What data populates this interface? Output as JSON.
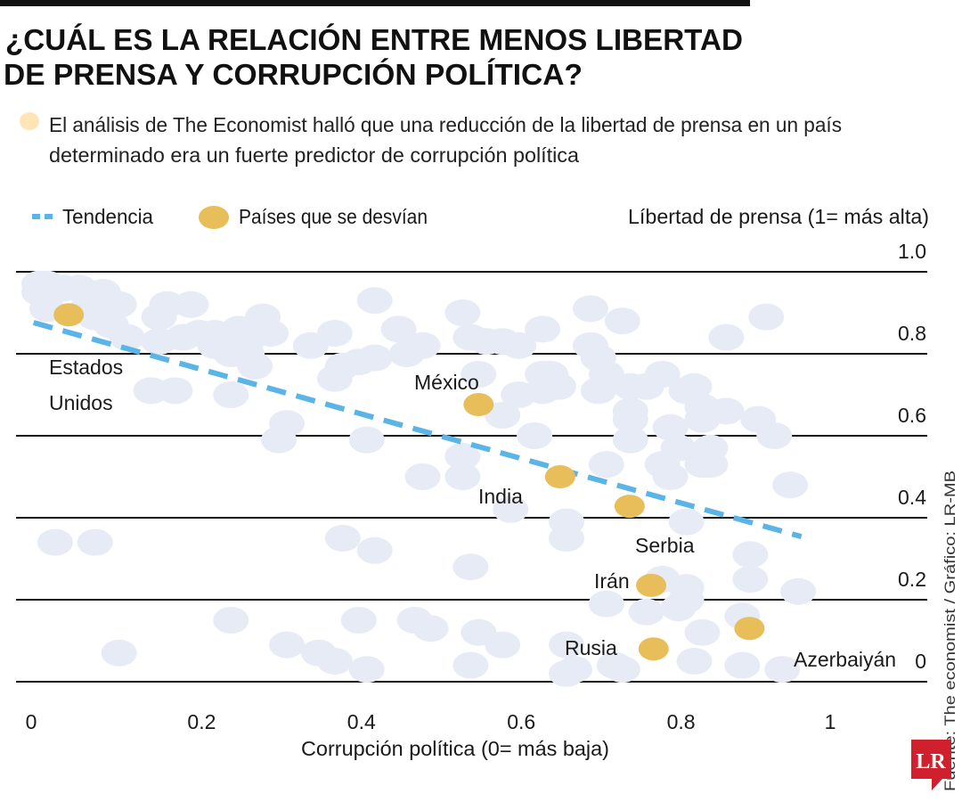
{
  "header": {
    "title_line1": "¿CUÁL ES LA RELACIÓN ENTRE MENOS LIBERTAD",
    "title_line2": "DE PRENSA Y CORRUPCIÓN POLÍTICA?",
    "subtitle_line1": "El análisis de The Economist halló que  una reducción de la libertad de prensa en un país",
    "subtitle_line2": "determinado era un fuerte predictor de corrupción política"
  },
  "colors": {
    "trend": "#5ab4e5",
    "highlight": "#e8be5a",
    "background_points": "#e6ebf6",
    "bullet": "#fde5b8",
    "logo": "#d0202e"
  },
  "source": "Fuente: The economist / Gráfico: LR-MB",
  "logo_text": "LR",
  "chart_data": {
    "type": "scatter",
    "title": "¿CUÁL ES LA RELACIÓN ENTRE MENOS LIBERTAD DE PRENSA Y CORRUPCIÓN POLÍTICA?",
    "xlabel": "Corrupción política (0= más baja)",
    "ylabel": "Líbertad de prensa (1= más alta)",
    "xlim": [
      0,
      1
    ],
    "ylim": [
      0,
      1
    ],
    "x_ticks": [
      "0",
      "0.2",
      "0.4",
      "0.6",
      "0.8",
      "1"
    ],
    "x_tick_values": [
      0,
      0.2,
      0.4,
      0.6,
      0.8,
      1
    ],
    "y_ticks": [
      "1.0",
      "0.8",
      "0.6",
      "0.4",
      "0.2",
      "0"
    ],
    "y_tick_values": [
      1,
      0.8,
      0.6,
      0.4,
      0.2,
      0
    ],
    "grid": true,
    "legend": {
      "placement": "top-left",
      "trend_label": "Tendencia",
      "highlight_label": "Países que se desvían"
    },
    "trend": {
      "x": [
        0.003,
        0.964
      ],
      "y": [
        0.876,
        0.354
      ]
    },
    "highlighted": [
      {
        "name": "Estados Unidos",
        "label_lines": [
          "Estados",
          "Unidos"
        ],
        "x": 0.047,
        "y": 0.895
      },
      {
        "name": "México",
        "label_lines": [
          "México"
        ],
        "x": 0.56,
        "y": 0.676
      },
      {
        "name": "India",
        "label_lines": [
          "India"
        ],
        "x": 0.662,
        "y": 0.5
      },
      {
        "name": "Serbia",
        "label_lines": [
          "Serbia"
        ],
        "x": 0.749,
        "y": 0.428
      },
      {
        "name": "Irán",
        "label_lines": [
          "Irán"
        ],
        "x": 0.776,
        "y": 0.235
      },
      {
        "name": "Rusia",
        "label_lines": [
          "Rusia"
        ],
        "x": 0.779,
        "y": 0.08
      },
      {
        "name": "Azerbaiyán",
        "label_lines": [
          "Azerbaiyán"
        ],
        "x": 0.899,
        "y": 0.13
      }
    ],
    "points": [
      [
        0.01,
        0.97
      ],
      [
        0.02,
        0.97
      ],
      [
        0.01,
        0.95
      ],
      [
        0.04,
        0.96
      ],
      [
        0.06,
        0.96
      ],
      [
        0.09,
        0.95
      ],
      [
        0.11,
        0.92
      ],
      [
        0.02,
        0.91
      ],
      [
        0.07,
        0.91
      ],
      [
        0.08,
        0.89
      ],
      [
        0.1,
        0.87
      ],
      [
        0.12,
        0.84
      ],
      [
        0.16,
        0.89
      ],
      [
        0.17,
        0.92
      ],
      [
        0.2,
        0.92
      ],
      [
        0.16,
        0.83
      ],
      [
        0.19,
        0.84
      ],
      [
        0.21,
        0.85
      ],
      [
        0.23,
        0.85
      ],
      [
        0.26,
        0.86
      ],
      [
        0.23,
        0.82
      ],
      [
        0.25,
        0.8
      ],
      [
        0.27,
        0.8
      ],
      [
        0.28,
        0.77
      ],
      [
        0.27,
        0.83
      ],
      [
        0.29,
        0.89
      ],
      [
        0.3,
        0.85
      ],
      [
        0.25,
        0.7
      ],
      [
        0.18,
        0.71
      ],
      [
        0.15,
        0.71
      ],
      [
        0.32,
        0.63
      ],
      [
        0.31,
        0.59
      ],
      [
        0.35,
        0.82
      ],
      [
        0.38,
        0.85
      ],
      [
        0.39,
        0.77
      ],
      [
        0.38,
        0.74
      ],
      [
        0.41,
        0.78
      ],
      [
        0.43,
        0.79
      ],
      [
        0.42,
        0.59
      ],
      [
        0.43,
        0.93
      ],
      [
        0.46,
        0.86
      ],
      [
        0.49,
        0.82
      ],
      [
        0.47,
        0.8
      ],
      [
        0.54,
        0.9
      ],
      [
        0.55,
        0.84
      ],
      [
        0.57,
        0.83
      ],
      [
        0.59,
        0.83
      ],
      [
        0.61,
        0.82
      ],
      [
        0.64,
        0.86
      ],
      [
        0.64,
        0.75
      ],
      [
        0.61,
        0.7
      ],
      [
        0.64,
        0.71
      ],
      [
        0.59,
        0.65
      ],
      [
        0.56,
        0.75
      ],
      [
        0.54,
        0.55
      ],
      [
        0.54,
        0.5
      ],
      [
        0.49,
        0.5
      ],
      [
        0.7,
        0.91
      ],
      [
        0.74,
        0.88
      ],
      [
        0.7,
        0.82
      ],
      [
        0.71,
        0.79
      ],
      [
        0.72,
        0.75
      ],
      [
        0.65,
        0.73
      ],
      [
        0.65,
        0.75
      ],
      [
        0.66,
        0.72
      ],
      [
        0.63,
        0.6
      ],
      [
        0.71,
        0.71
      ],
      [
        0.75,
        0.72
      ],
      [
        0.77,
        0.72
      ],
      [
        0.79,
        0.75
      ],
      [
        0.82,
        0.71
      ],
      [
        0.83,
        0.72
      ],
      [
        0.75,
        0.66
      ],
      [
        0.75,
        0.64
      ],
      [
        0.75,
        0.59
      ],
      [
        0.8,
        0.62
      ],
      [
        0.84,
        0.67
      ],
      [
        0.84,
        0.64
      ],
      [
        0.87,
        0.66
      ],
      [
        0.91,
        0.64
      ],
      [
        0.93,
        0.6
      ],
      [
        0.81,
        0.57
      ],
      [
        0.79,
        0.53
      ],
      [
        0.8,
        0.5
      ],
      [
        0.85,
        0.57
      ],
      [
        0.85,
        0.53
      ],
      [
        0.84,
        0.53
      ],
      [
        0.95,
        0.48
      ],
      [
        0.87,
        0.84
      ],
      [
        0.92,
        0.89
      ],
      [
        0.72,
        0.53
      ],
      [
        0.6,
        0.42
      ],
      [
        0.67,
        0.39
      ],
      [
        0.67,
        0.35
      ],
      [
        0.82,
        0.39
      ],
      [
        0.03,
        0.34
      ],
      [
        0.08,
        0.34
      ],
      [
        0.39,
        0.35
      ],
      [
        0.43,
        0.32
      ],
      [
        0.55,
        0.28
      ],
      [
        0.9,
        0.31
      ],
      [
        0.9,
        0.25
      ],
      [
        0.96,
        0.22
      ],
      [
        0.72,
        0.19
      ],
      [
        0.79,
        0.25
      ],
      [
        0.82,
        0.23
      ],
      [
        0.77,
        0.17
      ],
      [
        0.81,
        0.18
      ],
      [
        0.82,
        0.2
      ],
      [
        0.84,
        0.12
      ],
      [
        0.89,
        0.16
      ],
      [
        0.25,
        0.15
      ],
      [
        0.41,
        0.15
      ],
      [
        0.48,
        0.15
      ],
      [
        0.5,
        0.13
      ],
      [
        0.56,
        0.12
      ],
      [
        0.59,
        0.09
      ],
      [
        0.32,
        0.09
      ],
      [
        0.36,
        0.07
      ],
      [
        0.38,
        0.05
      ],
      [
        0.42,
        0.03
      ],
      [
        0.11,
        0.07
      ],
      [
        0.55,
        0.04
      ],
      [
        0.67,
        0.09
      ],
      [
        0.68,
        0.03
      ],
      [
        0.74,
        0.03
      ],
      [
        0.83,
        0.05
      ],
      [
        0.89,
        0.04
      ],
      [
        0.94,
        0.03
      ],
      [
        0.67,
        0.02
      ],
      [
        0.73,
        0.04
      ]
    ]
  }
}
